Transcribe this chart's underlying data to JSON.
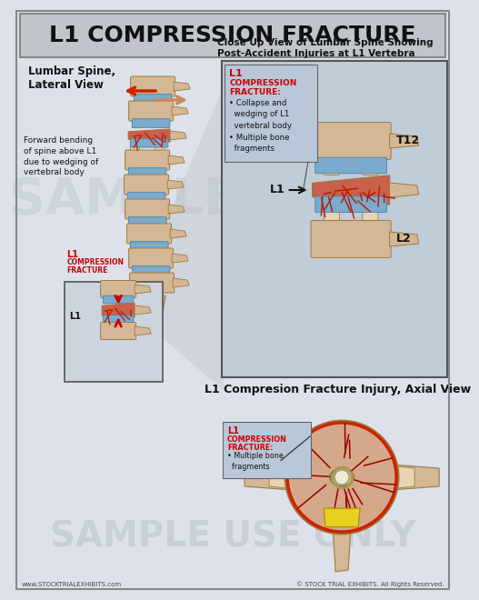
{
  "title": "L1 COMPRESSION FRACTURE",
  "bg_color": "#dde2ea",
  "title_bg": "#c0c5cc",
  "title_color": "#111111",
  "title_fontsize": 18,
  "sample_watermark": "SAMPLE USE ONLY",
  "sample_watermark2": "SAMPLE",
  "footer_left": "www.STOCKTRIALEXHIBITS.com",
  "footer_right": "© STOCK TRIAL EXHIBITS. All Rights Reserved.",
  "section1_title": "Lumbar Spine,\nLateral View",
  "section2_title": "Close Up View of Lumbar Spine Showing\nPost-Accident Injuries at L1 Vertebra",
  "section3_title": "L1 Compresion Fracture Injury, Axial View",
  "label_forward_bending": "Forward bending\nof spine above L1\ndue to wedging of\nvertebral body",
  "label_collapse": "L1\nCOMPRESSION\nFRACTURE:\n• Collapse and\nwedging of L1\nvertebral body\n• Multiple bone\nfragments",
  "label_axial": "L1\nCOMPRESSION\nFRACTURE:\n• Multiple bone\nfragments",
  "label_T12": "T12",
  "label_L1": "L1",
  "label_L2": "L2",
  "bone_color": "#d4b896",
  "bone_dark": "#a07840",
  "bone_light": "#e8d4b4",
  "disc_color": "#7aabcc",
  "disc_edge": "#4a80a8",
  "fracture_color": "#bb1500",
  "fracture_fill": "#c8604a",
  "arrow_color": "#cc0000",
  "box_bg": "#c8d4de",
  "label_box_bg": "#aabccc",
  "red_text": "#cc0000",
  "black_text": "#111111",
  "closeup_bg": "#c0ccd8",
  "watermark_color": "#b8c0cc",
  "watermark_alpha": 0.5,
  "footer_color": "#444444"
}
